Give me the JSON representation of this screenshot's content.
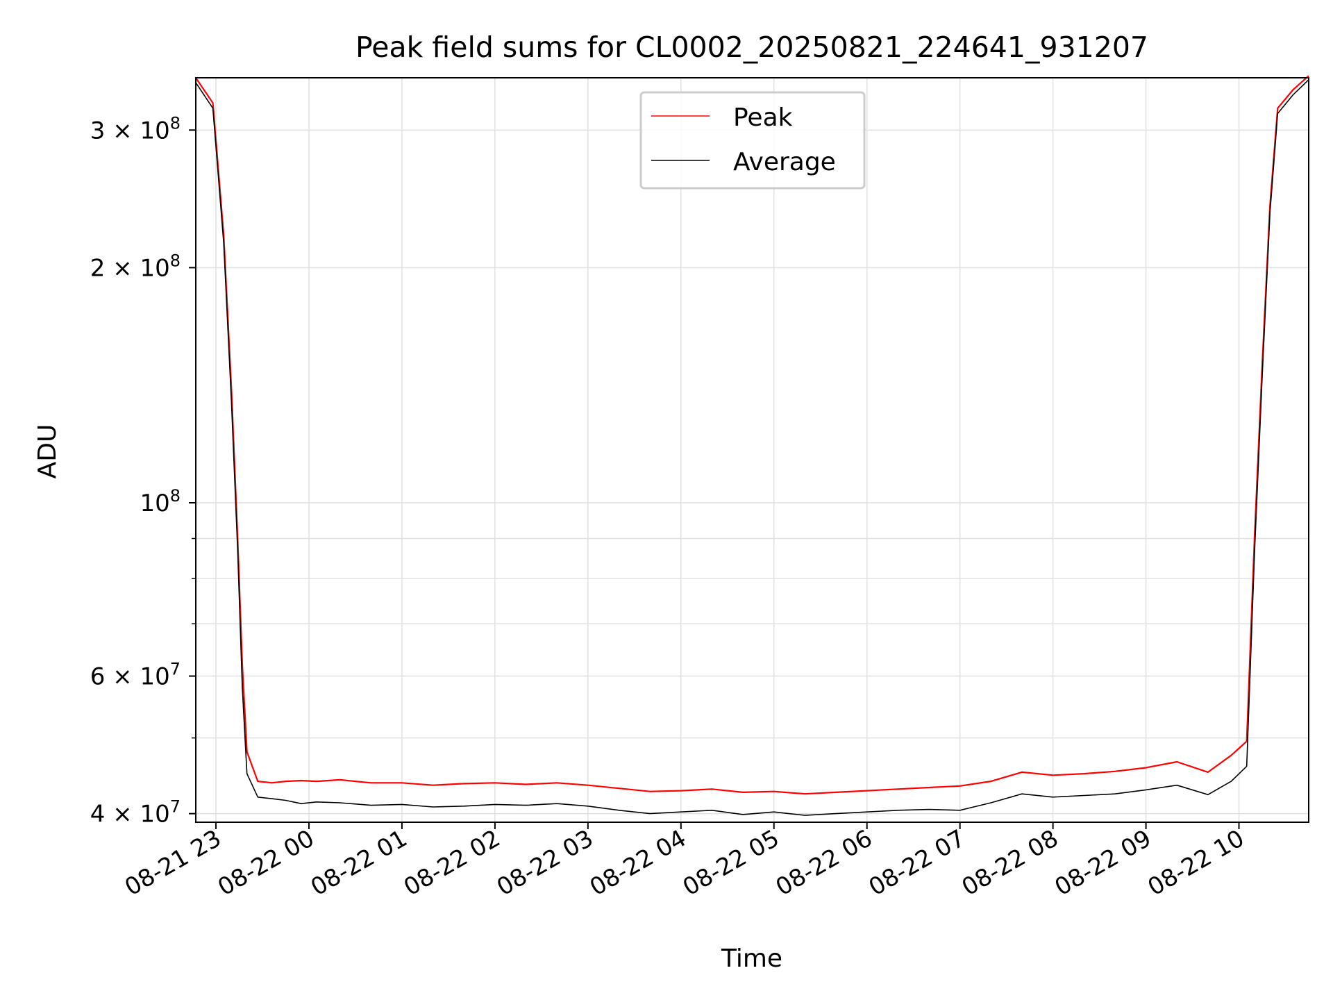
{
  "chart_data": {
    "type": "line",
    "title": "Peak field sums for CL0002_20250821_224641_931207",
    "xlabel": "Time",
    "ylabel": "ADU",
    "yscale": "log",
    "ylim": [
      39000000,
      350000000
    ],
    "xlim": [
      "2025-08-21T22:47",
      "2025-08-22T10:45"
    ],
    "grid": true,
    "legend": "upper center",
    "x_ticks": [
      "08-21 23",
      "08-22 00",
      "08-22 01",
      "08-22 02",
      "08-22 03",
      "08-22 04",
      "08-22 05",
      "08-22 06",
      "08-22 07",
      "08-22 08",
      "08-22 09",
      "08-22 10"
    ],
    "y_ticks": [
      {
        "base": "3 × 10",
        "exp": "8"
      },
      {
        "base": "2 × 10",
        "exp": "8"
      },
      {
        "base": "10",
        "exp": "8"
      },
      {
        "base": "6 × 10",
        "exp": "7"
      },
      {
        "base": "4 × 10",
        "exp": "7"
      }
    ],
    "colors": {
      "peak": "#ff0000",
      "average": "#000000",
      "grid": "#e0e0e0"
    },
    "series": [
      {
        "name": "Peak",
        "color": "#ff0000",
        "x": [
          "2025-08-21T22:47",
          "2025-08-21T22:58",
          "2025-08-21T23:05",
          "2025-08-21T23:10",
          "2025-08-21T23:14",
          "2025-08-21T23:17",
          "2025-08-21T23:20",
          "2025-08-21T23:27",
          "2025-08-21T23:36",
          "2025-08-21T23:45",
          "2025-08-21T23:55",
          "2025-08-22T00:05",
          "2025-08-22T00:20",
          "2025-08-22T00:40",
          "2025-08-22T01:00",
          "2025-08-22T01:20",
          "2025-08-22T01:40",
          "2025-08-22T02:00",
          "2025-08-22T02:20",
          "2025-08-22T02:40",
          "2025-08-22T03:00",
          "2025-08-22T03:20",
          "2025-08-22T03:40",
          "2025-08-22T04:00",
          "2025-08-22T04:20",
          "2025-08-22T04:40",
          "2025-08-22T05:00",
          "2025-08-22T05:20",
          "2025-08-22T05:40",
          "2025-08-22T06:00",
          "2025-08-22T06:20",
          "2025-08-22T06:40",
          "2025-08-22T07:00",
          "2025-08-22T07:20",
          "2025-08-22T07:40",
          "2025-08-22T08:00",
          "2025-08-22T08:20",
          "2025-08-22T08:40",
          "2025-08-22T09:00",
          "2025-08-22T09:20",
          "2025-08-22T09:40",
          "2025-08-22T09:55",
          "2025-08-22T10:05",
          "2025-08-22T10:10",
          "2025-08-22T10:15",
          "2025-08-22T10:20",
          "2025-08-22T10:25",
          "2025-08-22T10:35",
          "2025-08-22T10:45"
        ],
        "values": [
          350000000,
          325000000,
          220000000,
          140000000,
          90000000,
          62000000,
          48000000,
          44000000,
          43800000,
          44000000,
          44100000,
          44000000,
          44200000,
          43800000,
          43800000,
          43500000,
          43700000,
          43800000,
          43600000,
          43800000,
          43500000,
          43100000,
          42700000,
          42800000,
          43000000,
          42600000,
          42700000,
          42400000,
          42600000,
          42800000,
          43000000,
          43200000,
          43400000,
          44000000,
          45200000,
          44800000,
          45000000,
          45300000,
          45800000,
          46600000,
          45200000,
          47500000,
          49500000,
          90000000,
          150000000,
          240000000,
          320000000,
          338000000,
          352000000
        ]
      },
      {
        "name": "Average",
        "color": "#000000",
        "x": [
          "2025-08-21T22:47",
          "2025-08-21T22:58",
          "2025-08-21T23:05",
          "2025-08-21T23:10",
          "2025-08-21T23:14",
          "2025-08-21T23:17",
          "2025-08-21T23:20",
          "2025-08-21T23:27",
          "2025-08-21T23:36",
          "2025-08-21T23:45",
          "2025-08-21T23:55",
          "2025-08-22T00:05",
          "2025-08-22T00:20",
          "2025-08-22T00:40",
          "2025-08-22T01:00",
          "2025-08-22T01:20",
          "2025-08-22T01:40",
          "2025-08-22T02:00",
          "2025-08-22T02:20",
          "2025-08-22T02:40",
          "2025-08-22T03:00",
          "2025-08-22T03:20",
          "2025-08-22T03:40",
          "2025-08-22T04:00",
          "2025-08-22T04:20",
          "2025-08-22T04:40",
          "2025-08-22T05:00",
          "2025-08-22T05:20",
          "2025-08-22T05:40",
          "2025-08-22T06:00",
          "2025-08-22T06:20",
          "2025-08-22T06:40",
          "2025-08-22T07:00",
          "2025-08-22T07:20",
          "2025-08-22T07:40",
          "2025-08-22T08:00",
          "2025-08-22T08:20",
          "2025-08-22T08:40",
          "2025-08-22T09:00",
          "2025-08-22T09:20",
          "2025-08-22T09:40",
          "2025-08-22T09:55",
          "2025-08-22T10:05",
          "2025-08-22T10:10",
          "2025-08-22T10:15",
          "2025-08-22T10:20",
          "2025-08-22T10:25",
          "2025-08-22T10:35",
          "2025-08-22T10:45"
        ],
        "values": [
          345000000,
          320000000,
          215000000,
          135000000,
          87000000,
          58000000,
          45000000,
          42000000,
          41800000,
          41600000,
          41200000,
          41400000,
          41300000,
          41000000,
          41100000,
          40800000,
          40900000,
          41100000,
          41000000,
          41200000,
          40900000,
          40400000,
          40000000,
          40200000,
          40400000,
          39900000,
          40200000,
          39800000,
          40000000,
          40200000,
          40400000,
          40500000,
          40400000,
          41300000,
          42400000,
          42000000,
          42200000,
          42400000,
          42900000,
          43500000,
          42300000,
          44000000,
          46000000,
          86000000,
          145000000,
          235000000,
          315000000,
          333000000,
          348000000
        ]
      }
    ]
  }
}
